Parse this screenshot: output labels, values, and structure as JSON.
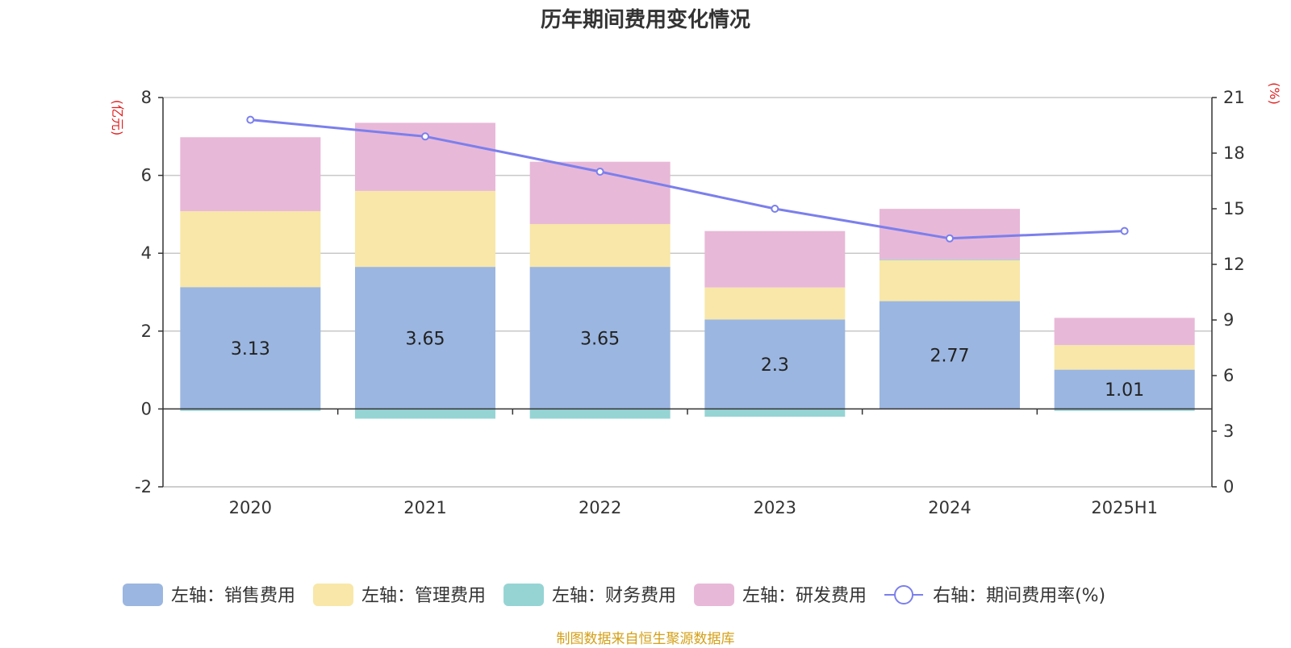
{
  "chart_data": {
    "type": "bar",
    "title": "历年期间费用变化情况",
    "categories": [
      "2020",
      "2021",
      "2022",
      "2023",
      "2024",
      "2025H1"
    ],
    "y_left": {
      "unit_label": "(亿元)",
      "range": [
        -2,
        8
      ],
      "ticks": [
        "-2",
        "0",
        "2",
        "4",
        "6",
        "8"
      ]
    },
    "y_right": {
      "unit_label": "(%)",
      "range": [
        0,
        21
      ],
      "ticks": [
        "0",
        "3",
        "6",
        "9",
        "12",
        "15",
        "18",
        "21"
      ]
    },
    "grid": true,
    "legend_position": "bottom",
    "series": [
      {
        "name": "左轴：销售费用",
        "type": "bar",
        "axis": "left",
        "color": "#9BB6E0",
        "values": [
          3.13,
          3.65,
          3.65,
          2.3,
          2.77,
          1.01
        ],
        "labels": [
          "3.13",
          "3.65",
          "3.65",
          "2.3",
          "2.77",
          "1.01"
        ]
      },
      {
        "name": "左轴：管理费用",
        "type": "bar",
        "axis": "left",
        "color": "#F8E7A8",
        "values": [
          1.95,
          1.95,
          1.1,
          0.82,
          1.05,
          0.63
        ]
      },
      {
        "name": "左轴：财务费用",
        "type": "bar",
        "axis": "left",
        "color": "#96D4D4",
        "values": [
          -0.05,
          -0.25,
          -0.25,
          -0.2,
          0.02,
          -0.05
        ]
      },
      {
        "name": "左轴：研发费用",
        "type": "bar",
        "axis": "left",
        "color": "#E8B8D8",
        "values": [
          1.9,
          1.75,
          1.6,
          1.45,
          1.3,
          0.7
        ]
      },
      {
        "name": "右轴：期间费用率(%)",
        "type": "line",
        "axis": "right",
        "color": "#7B7FEC",
        "values": [
          19.8,
          18.9,
          17.0,
          15.0,
          13.4,
          13.8
        ]
      }
    ],
    "source": "制图数据来自恒生聚源数据库"
  },
  "colors": {
    "axis_unit": "#E02020",
    "source_text": "#D4A017"
  }
}
